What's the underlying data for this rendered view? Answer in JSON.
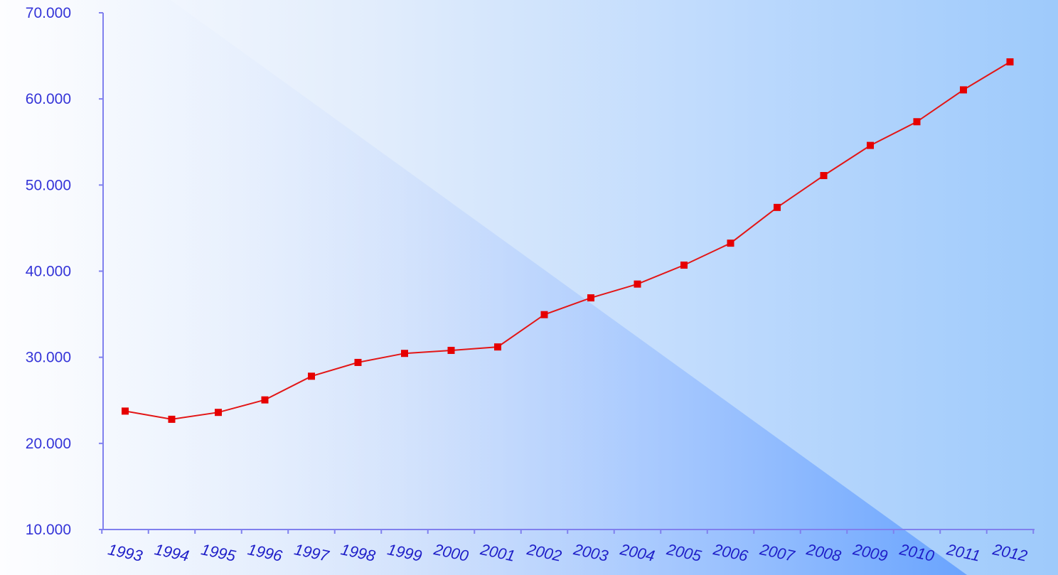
{
  "colors": {
    "axis": "#8080ee",
    "line": "#e31616",
    "marker": "#e60000",
    "tick_text_y": "#3434d8",
    "tick_text_x": "#1e1ec8",
    "background_light": "#fdfdff",
    "background_dark": "#a0cbfb",
    "wedge_color": "#6ea8ff"
  },
  "chart_data": {
    "type": "line",
    "title": "",
    "xlabel": "",
    "ylabel": "",
    "categories": [
      "1993",
      "1994",
      "1995",
      "1996",
      "1997",
      "1998",
      "1999",
      "2000",
      "2001",
      "2002",
      "2003",
      "2004",
      "2005",
      "2006",
      "2007",
      "2008",
      "2009",
      "2010",
      "2011",
      "2012"
    ],
    "values": [
      23750,
      22800,
      23600,
      25050,
      27800,
      29400,
      30450,
      30800,
      31200,
      34950,
      36900,
      38500,
      40700,
      43250,
      47400,
      51100,
      54600,
      57350,
      61050,
      64300
    ],
    "ylim": [
      10000,
      70000
    ],
    "yticks": [
      10000,
      20000,
      30000,
      40000,
      50000,
      60000,
      70000
    ],
    "ytick_labels": [
      "10.000",
      "20.000",
      "30.000",
      "40.000",
      "50.000",
      "60.000",
      "70.000"
    ],
    "grid": false,
    "legend": "none",
    "marker": "square"
  }
}
